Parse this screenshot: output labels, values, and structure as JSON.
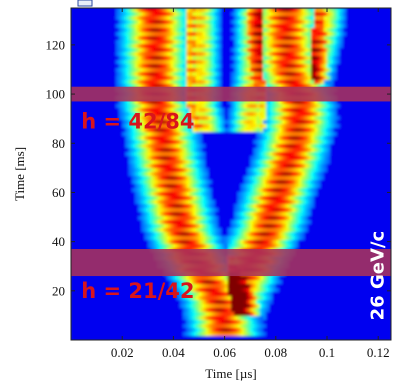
{
  "chart_data": {
    "type": "heatmap",
    "xlabel": "Time [µs]",
    "ylabel": "Time [ms]",
    "xlim": [
      0,
      0.125
    ],
    "ylim": [
      0,
      135
    ],
    "x_ticks": [
      0.02,
      0.04,
      0.06,
      0.08,
      0.1,
      0.12
    ],
    "x_tick_labels": [
      "0.02",
      "0.04",
      "0.06",
      "0.08",
      "0.1",
      "0.12"
    ],
    "y_ticks": [
      20,
      40,
      60,
      80,
      100,
      120
    ],
    "y_tick_labels": [
      "20",
      "40",
      "60",
      "80",
      "100",
      "120"
    ],
    "colormap": "jet",
    "background_color": "#0a2fd0",
    "traces": [
      {
        "points": [
          [
            0.06,
            5
          ],
          [
            0.058,
            15
          ],
          [
            0.053,
            25
          ],
          [
            0.047,
            35
          ],
          [
            0.043,
            45
          ],
          [
            0.04,
            60
          ],
          [
            0.037,
            75
          ],
          [
            0.035,
            88
          ],
          [
            0.033,
            97
          ],
          [
            0.033,
            110
          ],
          [
            0.033,
            125
          ],
          [
            0.033,
            135
          ]
        ],
        "width": 0.011,
        "peak": 0.85
      },
      {
        "points": [
          [
            0.06,
            5
          ],
          [
            0.063,
            15
          ],
          [
            0.067,
            25
          ],
          [
            0.072,
            35
          ],
          [
            0.077,
            45
          ],
          [
            0.081,
            60
          ],
          [
            0.086,
            75
          ],
          [
            0.089,
            88
          ],
          [
            0.089,
            97
          ],
          [
            0.085,
            110
          ],
          [
            0.084,
            125
          ],
          [
            0.084,
            135
          ]
        ],
        "width": 0.011,
        "peak": 0.85
      },
      {
        "points": [
          [
            0.052,
            88
          ],
          [
            0.05,
            97
          ],
          [
            0.05,
            110
          ],
          [
            0.05,
            125
          ],
          [
            0.05,
            135
          ]
        ],
        "width": 0.007,
        "peak": 0.62
      },
      {
        "points": [
          [
            0.07,
            88
          ],
          [
            0.071,
            97
          ],
          [
            0.072,
            110
          ],
          [
            0.072,
            125
          ],
          [
            0.072,
            135
          ]
        ],
        "width": 0.007,
        "peak": 0.62
      },
      {
        "points": [
          [
            0.09,
            88
          ],
          [
            0.092,
            97
          ],
          [
            0.095,
            110
          ],
          [
            0.098,
            125
          ],
          [
            0.099,
            135
          ]
        ],
        "width": 0.007,
        "peak": 0.62
      }
    ],
    "bands": [
      {
        "y_range": [
          97,
          103
        ],
        "color": "#a8325a"
      },
      {
        "y_range": [
          26,
          37
        ],
        "color": "#a8325a"
      }
    ],
    "annotations": [
      {
        "text": "h = 42/84",
        "x": 0.004,
        "y": 86,
        "role": "harmonic"
      },
      {
        "text": "h = 21/42",
        "x": 0.004,
        "y": 17,
        "role": "harmonic"
      },
      {
        "text": "26 GeV/c",
        "x": 0.122,
        "y": 8,
        "role": "momentum"
      }
    ]
  }
}
